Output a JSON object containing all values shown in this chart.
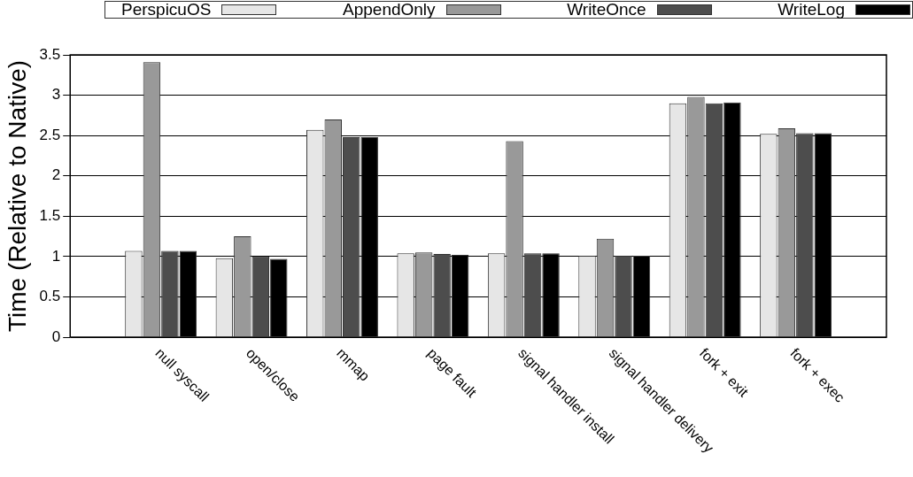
{
  "chart_data": {
    "type": "bar",
    "ylabel": "Time (Relative to Native)",
    "categories": [
      "null syscall",
      "open/close",
      "mmap",
      "page fault",
      "signal handler install",
      "signal handler delivery",
      "fork + exit",
      "fork + exec"
    ],
    "series": [
      {
        "name": "PerspicuOS",
        "color": "#e6e6e6",
        "values": [
          1.07,
          0.98,
          2.57,
          1.04,
          1.04,
          1.01,
          2.9,
          2.52
        ]
      },
      {
        "name": "AppendOnly",
        "color": "#999999",
        "values": [
          3.41,
          1.25,
          2.7,
          1.05,
          2.43,
          1.22,
          2.98,
          2.59
        ]
      },
      {
        "name": "WriteOnce",
        "color": "#4d4d4d",
        "values": [
          1.07,
          1.0,
          2.48,
          1.03,
          1.04,
          1.01,
          2.9,
          2.53
        ]
      },
      {
        "name": "WriteLog",
        "color": "#000000",
        "values": [
          1.07,
          0.97,
          2.48,
          1.02,
          1.04,
          1.01,
          2.91,
          2.53
        ]
      }
    ],
    "ylim": [
      0,
      3.5
    ],
    "yticks": [
      0,
      0.5,
      1,
      1.5,
      2,
      2.5,
      3,
      3.5
    ],
    "grid": "y",
    "legend": "top"
  }
}
